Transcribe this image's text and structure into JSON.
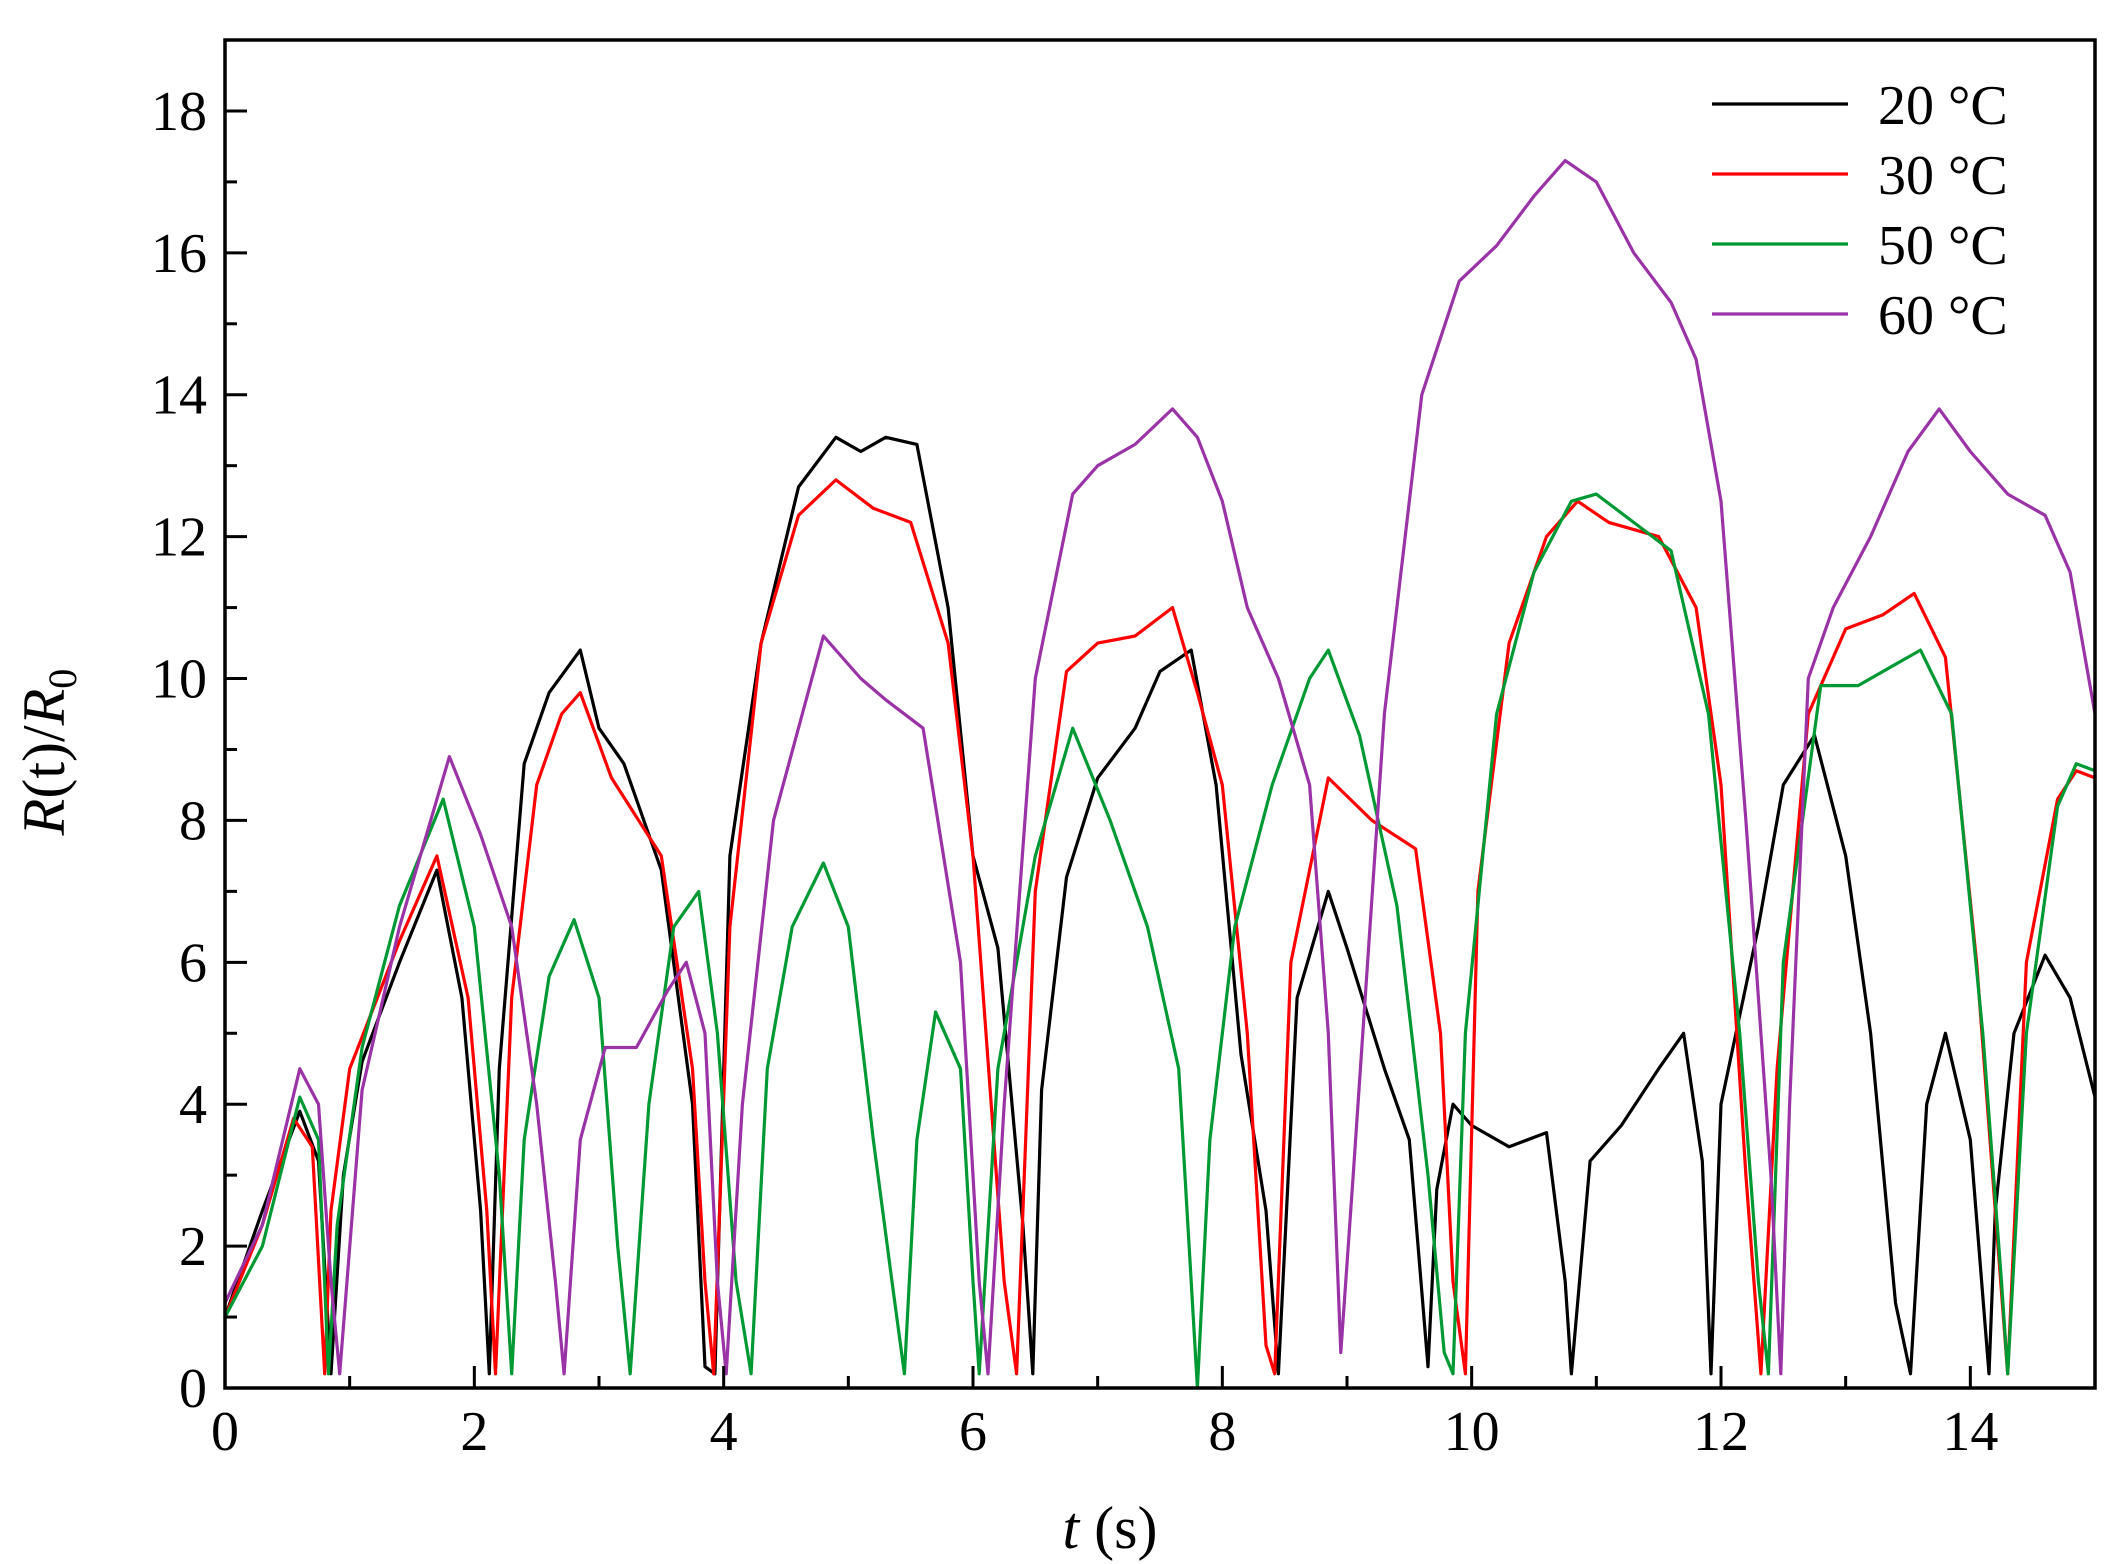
{
  "chart_data": {
    "type": "line",
    "title": "",
    "xlabel": {
      "italic": "t",
      "rest": " (s)"
    },
    "ylabel": {
      "italic1": "R",
      "mid": "(t)/",
      "italic2": "R",
      "sub": "0"
    },
    "xlim": [
      0,
      15
    ],
    "ylim": [
      0,
      19
    ],
    "xticks": [
      "0",
      "2",
      "4",
      "6",
      "8",
      "10",
      "12",
      "14"
    ],
    "yticks": [
      "0",
      "2",
      "4",
      "6",
      "8",
      "10",
      "12",
      "14",
      "16",
      "18"
    ],
    "grid": false,
    "legend_position": "top-right",
    "series": [
      {
        "name": "20 °C",
        "color": "#000000",
        "x": [
          0,
          0.3,
          0.6,
          0.75,
          0.85,
          0.95,
          1.1,
          1.4,
          1.7,
          1.9,
          2.05,
          2.12,
          2.2,
          2.4,
          2.6,
          2.85,
          3.0,
          3.2,
          3.5,
          3.75,
          3.85,
          3.93,
          4.05,
          4.3,
          4.6,
          4.9,
          5.1,
          5.3,
          5.55,
          5.8,
          6.0,
          6.2,
          6.4,
          6.48,
          6.55,
          6.75,
          7.0,
          7.3,
          7.5,
          7.75,
          7.95,
          8.15,
          8.35,
          8.45,
          8.6,
          8.85,
          9.0,
          9.3,
          9.5,
          9.65,
          9.72,
          9.85,
          10.0,
          10.3,
          10.6,
          10.75,
          10.8,
          10.95,
          11.2,
          11.5,
          11.7,
          11.85,
          11.92,
          12.0,
          12.3,
          12.5,
          12.75,
          13.0,
          13.2,
          13.4,
          13.52,
          13.65,
          13.8,
          14.0,
          14.15,
          14.2,
          14.35,
          14.6,
          14.8,
          15.0
        ],
        "y": [
          1.0,
          2.5,
          3.9,
          3.2,
          0.2,
          3.0,
          4.6,
          6.0,
          7.3,
          5.5,
          2.5,
          0.2,
          4.5,
          8.8,
          9.8,
          10.4,
          9.3,
          8.8,
          7.3,
          4.0,
          0.3,
          0.2,
          7.5,
          10.5,
          12.7,
          13.4,
          13.2,
          13.4,
          13.3,
          11.0,
          7.5,
          6.2,
          2.3,
          0.2,
          4.2,
          7.2,
          8.6,
          9.3,
          10.1,
          10.4,
          8.5,
          4.7,
          2.5,
          0.2,
          5.5,
          7.0,
          6.2,
          4.5,
          3.5,
          0.3,
          2.8,
          4.0,
          3.7,
          3.4,
          3.6,
          1.5,
          0.2,
          3.2,
          3.7,
          4.5,
          5.0,
          3.2,
          0.2,
          4.0,
          6.5,
          8.5,
          9.2,
          7.5,
          5.0,
          1.2,
          0.2,
          4.0,
          5.0,
          3.5,
          0.2,
          2.5,
          5.0,
          6.1,
          5.5,
          4.1
        ]
      },
      {
        "name": "30 °C",
        "color": "#ff0000",
        "x": [
          0,
          0.3,
          0.55,
          0.7,
          0.8,
          0.85,
          1.0,
          1.4,
          1.7,
          1.95,
          2.1,
          2.17,
          2.3,
          2.5,
          2.7,
          2.85,
          3.1,
          3.5,
          3.75,
          3.85,
          3.92,
          4.05,
          4.3,
          4.6,
          4.9,
          5.2,
          5.5,
          5.8,
          6.0,
          6.25,
          6.35,
          6.5,
          6.75,
          7.0,
          7.3,
          7.6,
          7.8,
          8.0,
          8.2,
          8.35,
          8.42,
          8.55,
          8.85,
          9.2,
          9.55,
          9.75,
          9.85,
          9.95,
          10.05,
          10.3,
          10.6,
          10.85,
          11.1,
          11.5,
          11.8,
          12.0,
          12.2,
          12.32,
          12.45,
          12.7,
          13.0,
          13.3,
          13.55,
          13.8,
          14.05,
          14.2,
          14.3,
          14.45,
          14.7,
          14.85,
          15.0
        ],
        "y": [
          1.0,
          2.3,
          3.8,
          3.4,
          0.2,
          2.5,
          4.5,
          6.3,
          7.5,
          5.5,
          2.5,
          0.2,
          5.5,
          8.5,
          9.5,
          9.8,
          8.6,
          7.5,
          4.5,
          1.5,
          0.2,
          6.5,
          10.5,
          12.3,
          12.8,
          12.4,
          12.2,
          10.5,
          7.5,
          1.5,
          0.2,
          7.0,
          10.1,
          10.5,
          10.6,
          11.0,
          9.8,
          8.5,
          5.0,
          0.6,
          0.2,
          6.0,
          8.6,
          8.0,
          7.6,
          5.0,
          1.5,
          0.2,
          7.0,
          10.5,
          12.0,
          12.5,
          12.2,
          12.0,
          11.0,
          8.5,
          3.0,
          0.2,
          4.5,
          9.5,
          10.7,
          10.9,
          11.2,
          10.3,
          6.0,
          2.5,
          0.2,
          6.0,
          8.3,
          8.7,
          8.6
        ]
      },
      {
        "name": "50 °C",
        "color": "#009933",
        "x": [
          0,
          0.3,
          0.6,
          0.75,
          0.83,
          0.9,
          1.1,
          1.4,
          1.75,
          2.0,
          2.2,
          2.3,
          2.4,
          2.6,
          2.8,
          3.0,
          3.15,
          3.25,
          3.4,
          3.6,
          3.8,
          3.95,
          4.1,
          4.22,
          4.35,
          4.55,
          4.8,
          5.0,
          5.2,
          5.35,
          5.45,
          5.55,
          5.7,
          5.9,
          6.0,
          6.05,
          6.2,
          6.5,
          6.8,
          7.1,
          7.4,
          7.65,
          7.75,
          7.8,
          7.9,
          8.1,
          8.4,
          8.7,
          8.85,
          9.1,
          9.4,
          9.65,
          9.78,
          9.85,
          9.95,
          10.2,
          10.5,
          10.8,
          11.0,
          11.3,
          11.6,
          11.9,
          12.15,
          12.3,
          12.38,
          12.5,
          12.8,
          13.1,
          13.4,
          13.6,
          13.85,
          14.1,
          14.25,
          14.3,
          14.45,
          14.7,
          14.85,
          15.0
        ],
        "y": [
          1.0,
          2.0,
          4.1,
          3.5,
          0.2,
          2.3,
          4.8,
          6.8,
          8.3,
          6.5,
          3.0,
          0.2,
          3.5,
          5.8,
          6.6,
          5.5,
          2.0,
          0.2,
          4.0,
          6.5,
          7.0,
          5.0,
          1.5,
          0.2,
          4.5,
          6.5,
          7.4,
          6.5,
          3.5,
          1.5,
          0.2,
          3.5,
          5.3,
          4.5,
          1.5,
          0.2,
          4.5,
          7.5,
          9.3,
          8.0,
          6.5,
          4.5,
          1.5,
          0.0,
          3.5,
          6.5,
          8.5,
          10.0,
          10.4,
          9.2,
          6.8,
          3.0,
          0.5,
          0.2,
          5.0,
          9.5,
          11.5,
          12.5,
          12.6,
          12.2,
          11.8,
          9.5,
          5.0,
          1.5,
          0.2,
          6.0,
          9.9,
          9.9,
          10.2,
          10.4,
          9.5,
          5.0,
          1.5,
          0.2,
          5.0,
          8.2,
          8.8,
          8.7
        ]
      },
      {
        "name": "60 °C",
        "color": "#9933a6",
        "x": [
          0,
          0.3,
          0.6,
          0.75,
          0.85,
          0.92,
          1.1,
          1.4,
          1.8,
          2.05,
          2.3,
          2.5,
          2.65,
          2.72,
          2.85,
          3.05,
          3.3,
          3.55,
          3.7,
          3.85,
          3.95,
          4.02,
          4.15,
          4.4,
          4.8,
          5.1,
          5.3,
          5.6,
          5.9,
          6.05,
          6.12,
          6.25,
          6.5,
          6.8,
          7.0,
          7.3,
          7.6,
          7.8,
          8.0,
          8.2,
          8.45,
          8.7,
          8.85,
          8.95,
          9.05,
          9.3,
          9.6,
          9.9,
          10.2,
          10.5,
          10.75,
          11.0,
          11.3,
          11.6,
          11.8,
          12.0,
          12.2,
          12.4,
          12.48,
          12.55,
          12.7,
          12.9,
          13.2,
          13.5,
          13.75,
          14.0,
          14.3,
          14.6,
          14.8,
          15.0
        ],
        "y": [
          1.2,
          2.3,
          4.5,
          4.0,
          1.5,
          0.2,
          4.2,
          6.5,
          8.9,
          7.8,
          6.5,
          4.0,
          1.5,
          0.2,
          3.5,
          4.8,
          4.8,
          5.6,
          6.0,
          5.0,
          1.5,
          0.2,
          4.0,
          8.0,
          10.6,
          10.0,
          9.7,
          9.3,
          6.0,
          1.5,
          0.2,
          4.0,
          10.0,
          12.6,
          13.0,
          13.3,
          13.8,
          13.4,
          12.5,
          11.0,
          10.0,
          8.5,
          5.0,
          0.5,
          3.0,
          9.5,
          14.0,
          15.6,
          16.1,
          16.8,
          17.3,
          17.0,
          16.0,
          15.3,
          14.5,
          12.5,
          8.0,
          3.0,
          0.2,
          4.0,
          10.0,
          11.0,
          12.0,
          13.2,
          13.8,
          13.2,
          12.6,
          12.3,
          11.5,
          9.5
        ]
      }
    ]
  }
}
